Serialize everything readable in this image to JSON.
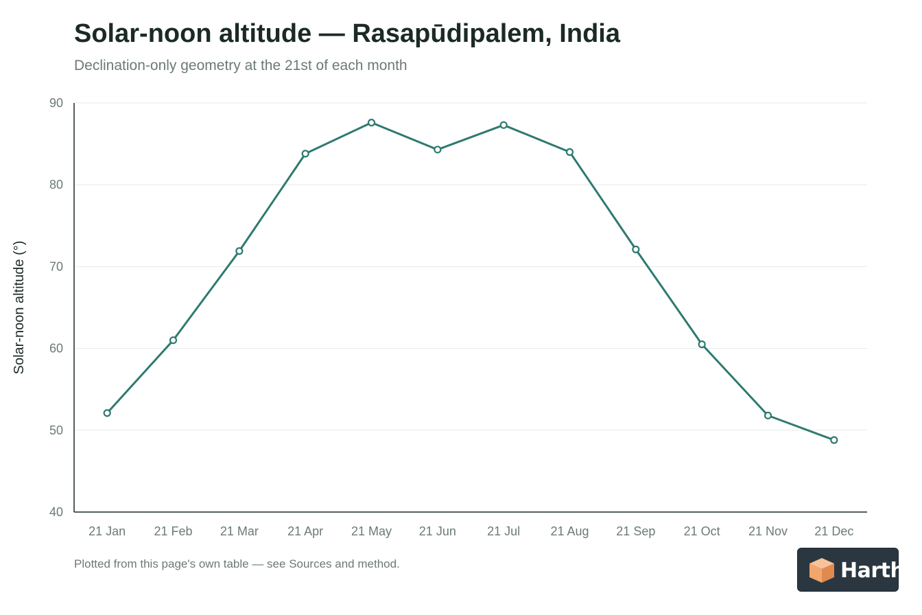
{
  "header": {
    "title": "Solar-noon altitude — Rasapūdipalem, India",
    "subtitle": "Declination-only geometry at the 21st of each month"
  },
  "footer": {
    "note": "Plotted from this page's own table — see Sources and method."
  },
  "badge": {
    "label": "Harth",
    "icon": "cube-logo-icon",
    "bg_color": "#2b3740",
    "icon_color": "#f2a66b"
  },
  "chart_data": {
    "type": "line",
    "title": "Solar-noon altitude — Rasapūdipalem, India",
    "subtitle": "Declination-only geometry at the 21st of each month",
    "xlabel": "",
    "ylabel": "Solar-noon altitude (°)",
    "ylim": [
      40,
      90
    ],
    "yticks": [
      40,
      50,
      60,
      70,
      80,
      90
    ],
    "grid": true,
    "legend": "none",
    "categories": [
      "21 Jan",
      "21 Feb",
      "21 Mar",
      "21 Apr",
      "21 May",
      "21 Jun",
      "21 Jul",
      "21 Aug",
      "21 Sep",
      "21 Oct",
      "21 Nov",
      "21 Dec"
    ],
    "series": [
      {
        "values": [
          52.1,
          61.0,
          71.9,
          83.8,
          87.6,
          84.3,
          87.3,
          84.0,
          72.1,
          60.5,
          51.8,
          48.8
        ],
        "color": "#2e7a6f"
      }
    ]
  }
}
